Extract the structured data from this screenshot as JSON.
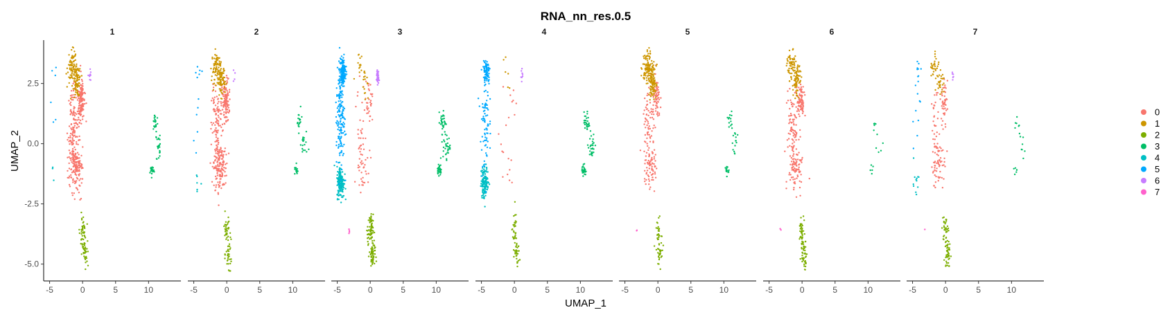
{
  "chart_data": {
    "type": "scatter",
    "title": "RNA_nn_res.0.5",
    "xlabel": "UMAP_1",
    "ylabel": "UMAP_2",
    "xlim": [
      -5.9,
      14.9
    ],
    "ylim": [
      -5.7,
      4.3
    ],
    "x_ticks": [
      -5,
      0,
      5,
      10
    ],
    "x_tick_labels": [
      "-5",
      "0",
      "5",
      "10"
    ],
    "y_ticks": [
      -5.0,
      -2.5,
      0.0,
      2.5
    ],
    "y_tick_labels": [
      "-5.0",
      "-2.5",
      "0.0",
      "2.5"
    ],
    "grid": false,
    "legend_position": "right",
    "facets": [
      "1",
      "2",
      "3",
      "4",
      "5",
      "6",
      "7"
    ],
    "legend": [
      {
        "label": "0",
        "color": "#F8766D"
      },
      {
        "label": "1",
        "color": "#CD9600"
      },
      {
        "label": "2",
        "color": "#7CAE00"
      },
      {
        "label": "3",
        "color": "#00BE67"
      },
      {
        "label": "4",
        "color": "#00BFC4"
      },
      {
        "label": "5",
        "color": "#00A9FF"
      },
      {
        "label": "6",
        "color": "#C77CFF"
      },
      {
        "label": "7",
        "color": "#FF61CC"
      }
    ],
    "clusters": {
      "0": {
        "color": "#F8766D",
        "blobs": [
          [
            -1.4,
            0.5,
            0.8,
            1.6
          ],
          [
            -1.0,
            -1.0,
            0.9,
            0.9
          ],
          [
            -0.2,
            1.8,
            0.5,
            0.8
          ]
        ]
      },
      "1": {
        "color": "#CD9600",
        "blobs": [
          [
            -1.6,
            3.2,
            0.6,
            0.6
          ],
          [
            -0.8,
            2.6,
            0.5,
            0.6
          ]
        ]
      },
      "2": {
        "color": "#7CAE00",
        "blobs": [
          [
            0.0,
            -3.6,
            0.4,
            0.6
          ],
          [
            0.3,
            -4.6,
            0.4,
            0.5
          ]
        ]
      },
      "3": {
        "color": "#00BE67",
        "blobs": [
          [
            11.6,
            -0.1,
            0.5,
            0.6
          ],
          [
            11.0,
            0.9,
            0.4,
            0.4
          ],
          [
            10.5,
            -1.1,
            0.3,
            0.2
          ]
        ]
      },
      "4": {
        "color": "#00BFC4",
        "blobs": [
          [
            -4.5,
            -1.6,
            0.5,
            0.6
          ]
        ]
      },
      "5": {
        "color": "#00A9FF",
        "blobs": [
          [
            -4.5,
            1.0,
            0.6,
            1.8
          ],
          [
            -4.2,
            3.0,
            0.4,
            0.5
          ]
        ]
      },
      "6": {
        "color": "#C77CFF",
        "blobs": [
          [
            1.1,
            2.8,
            0.15,
            0.3
          ]
        ]
      },
      "7": {
        "color": "#FF61CC",
        "blobs": [
          [
            -3.2,
            -3.6,
            0.1,
            0.1
          ]
        ]
      }
    },
    "facet_counts": [
      {
        "0": 420,
        "1": 160,
        "2": 75,
        "3": 70,
        "4": 3,
        "5": 6,
        "6": 10,
        "7": 0
      },
      {
        "0": 380,
        "1": 150,
        "2": 70,
        "3": 55,
        "4": 6,
        "5": 12,
        "6": 4,
        "7": 0
      },
      {
        "0": 90,
        "1": 30,
        "2": 120,
        "3": 95,
        "4": 170,
        "5": 320,
        "6": 40,
        "7": 4
      },
      {
        "0": 20,
        "1": 6,
        "2": 60,
        "3": 80,
        "4": 140,
        "5": 160,
        "6": 8,
        "7": 0
      },
      {
        "0": 210,
        "1": 200,
        "2": 50,
        "3": 40,
        "4": 0,
        "5": 0,
        "6": 0,
        "7": 2
      },
      {
        "0": 260,
        "1": 130,
        "2": 85,
        "3": 15,
        "4": 0,
        "5": 0,
        "6": 0,
        "7": 2
      },
      {
        "0": 140,
        "1": 60,
        "2": 80,
        "3": 20,
        "4": 12,
        "5": 18,
        "6": 6,
        "7": 1
      }
    ]
  }
}
